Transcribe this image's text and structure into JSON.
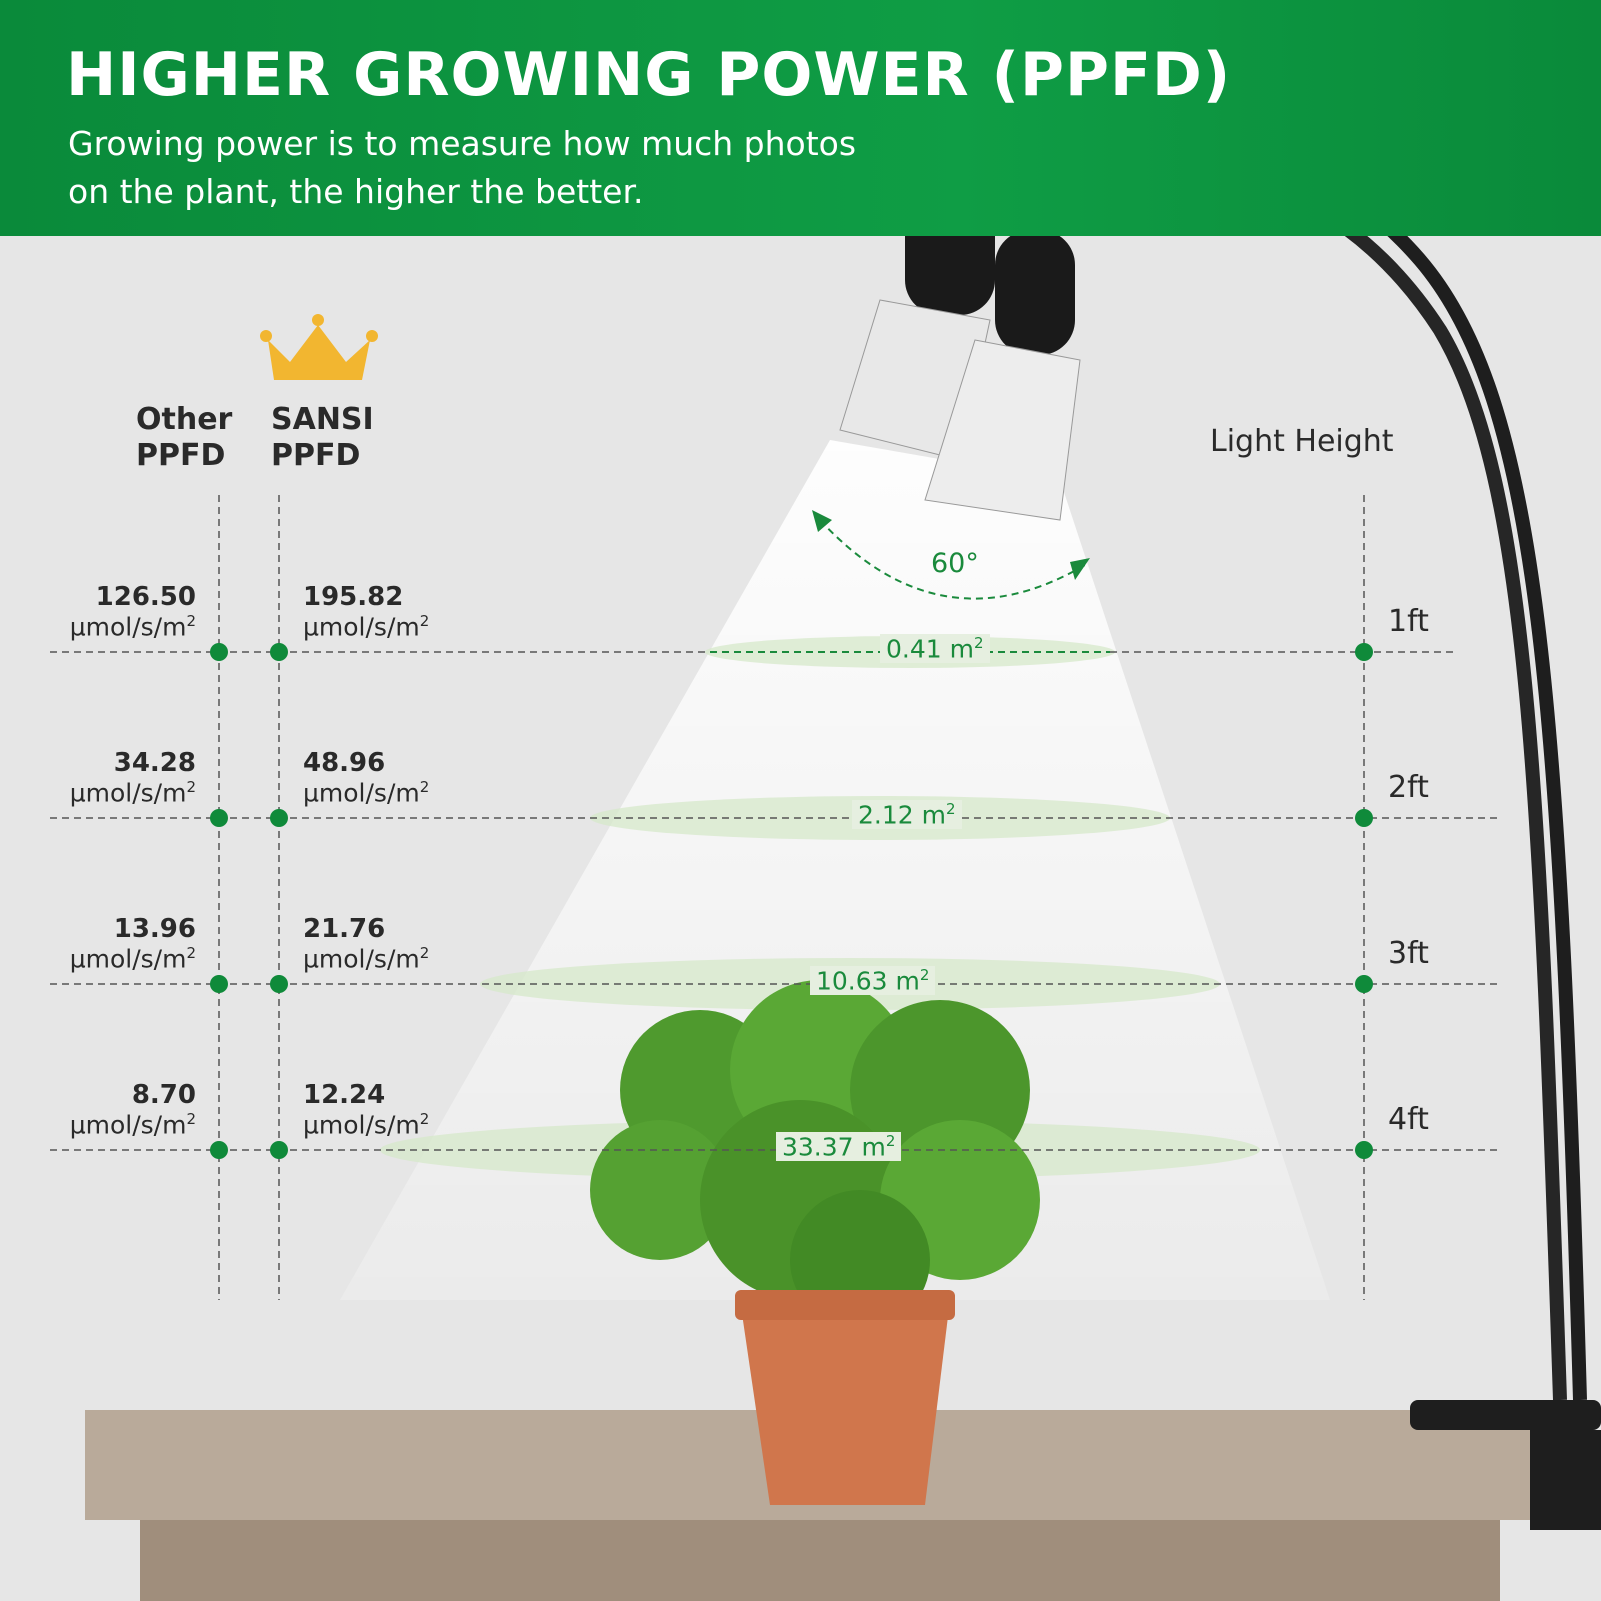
{
  "header": {
    "title": "HIGHER GROWING POWER (PPFD)",
    "subtitle_line1": "Growing power is to measure how much photos",
    "subtitle_line2": "on the plant, the higher the better."
  },
  "columns": {
    "other": [
      "Other",
      "PPFD"
    ],
    "sansi": [
      "SANSI",
      "PPFD"
    ],
    "height": "Light Height"
  },
  "beam_angle": "60°",
  "unit": "µmol/s/m",
  "area_unit": "m",
  "rows": [
    {
      "height": "1ft",
      "other": "126.50",
      "sansi": "195.82",
      "area": "0.41"
    },
    {
      "height": "2ft",
      "other": "34.28",
      "sansi": "48.96",
      "area": "2.12"
    },
    {
      "height": "3ft",
      "other": "13.96",
      "sansi": "21.76",
      "area": "10.63"
    },
    {
      "height": "4ft",
      "other": "8.70",
      "sansi": "12.24",
      "area": "33.37"
    }
  ],
  "colors": {
    "brand_green": "#0f9d45",
    "accent_green": "#1a8a3c",
    "crown": "#f2b630"
  },
  "icons": {
    "crown": "crown-icon"
  }
}
